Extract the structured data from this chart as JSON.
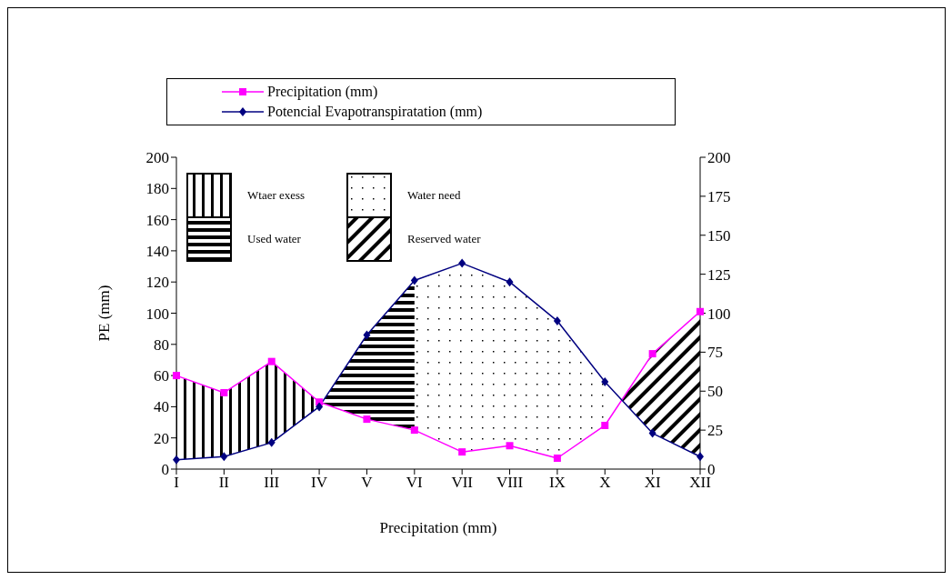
{
  "chart_data": {
    "type": "line",
    "xlabel": "Precipitation (mm)",
    "ylabel": "PE (mm)",
    "categories": [
      "I",
      "II",
      "III",
      "IV",
      "V",
      "VI",
      "VII",
      "VIII",
      "IX",
      "X",
      "XI",
      "XII"
    ],
    "series": [
      {
        "name": "Precipitation (mm)",
        "color": "#ff00ff",
        "marker": "square",
        "values": [
          60,
          49,
          69,
          43,
          32,
          25,
          11,
          15,
          7,
          28,
          74,
          101
        ]
      },
      {
        "name": "Potencial Evapotranspiratation (mm)",
        "color": "#000080",
        "marker": "diamond",
        "values": [
          6,
          8,
          17,
          40,
          86,
          121,
          132,
          120,
          95,
          56,
          23,
          8
        ]
      }
    ],
    "ylim": [
      0,
      200
    ],
    "yticks": [
      0,
      20,
      40,
      60,
      80,
      100,
      120,
      140,
      160,
      180,
      200
    ],
    "y2lim": [
      0,
      200
    ],
    "y2ticks": [
      0,
      25,
      50,
      75,
      100,
      125,
      150,
      175,
      200
    ],
    "annotations": [
      "Wtaer exess",
      "Water need",
      "Used water",
      "Reserved water"
    ],
    "legend": "top"
  }
}
